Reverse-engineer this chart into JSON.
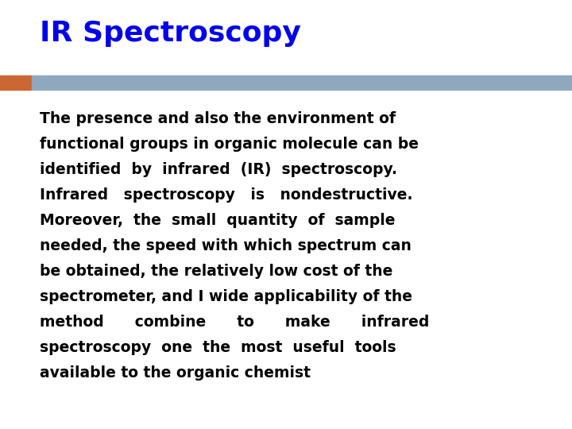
{
  "title": "IR Spectroscopy",
  "title_color": "#0000ee",
  "title_fontsize": 26,
  "background_color": "#ffffff",
  "bar_orange_color": "#cc6633",
  "bar_blue_color": "#8fa8c0",
  "body_color": "#000000",
  "body_fontsize": 13.5,
  "body_lines": [
    "The presence and also the environment of",
    "functional groups in organic molecule can be",
    "identified  by  infrared  (IR)  spectroscopy.",
    "Infrared   spectroscopy   is   nondestructive.",
    "Moreover,  the  small  quantity  of  sample",
    "needed, the speed with which spectrum can",
    "be obtained, the relatively low cost of the",
    "spectrometer, and I wide applicability of the",
    "method      combine      to      make      infrared",
    "spectroscopy  one  the  most  useful  tools",
    "available to the organic chemist"
  ],
  "font_family": "DejaVu Sans"
}
